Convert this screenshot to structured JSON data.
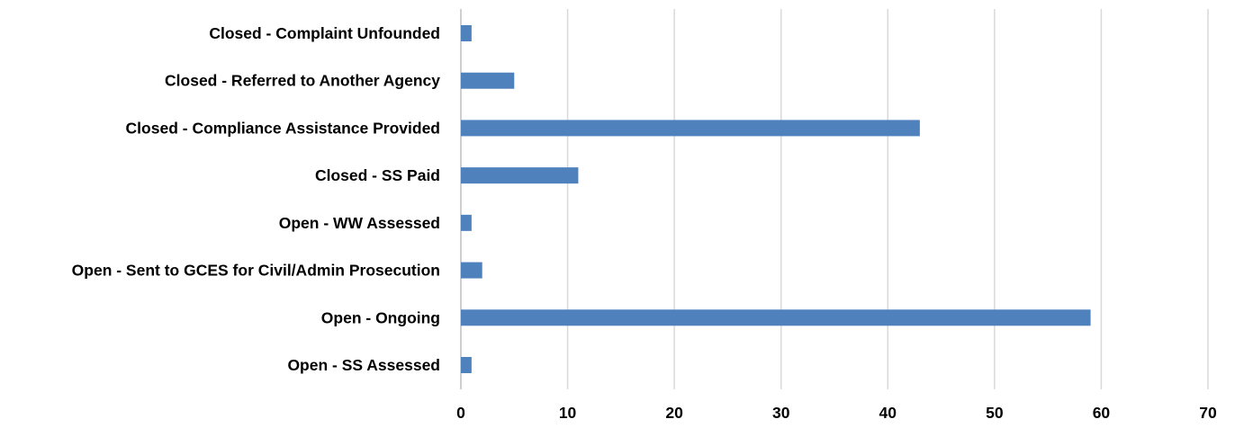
{
  "chart_data": {
    "type": "bar",
    "orientation": "horizontal",
    "title": "",
    "xlabel": "",
    "ylabel": "",
    "categories": [
      "Closed - Complaint Unfounded",
      "Closed - Referred to Another Agency",
      "Closed - Compliance Assistance Provided",
      "Closed - SS Paid",
      "Open - WW Assessed",
      "Open - Sent to GCES for Civil/Admin Prosecution",
      "Open - Ongoing",
      "Open - SS Assessed"
    ],
    "values": [
      1,
      5,
      43,
      11,
      1,
      2,
      59,
      1
    ],
    "xlim": [
      0,
      70
    ],
    "xticks": [
      0,
      10,
      20,
      30,
      40,
      50,
      60,
      70
    ],
    "grid": true,
    "legend": "none",
    "bar_color": "#4f81bd",
    "grid_color": "#d9d9d9"
  }
}
